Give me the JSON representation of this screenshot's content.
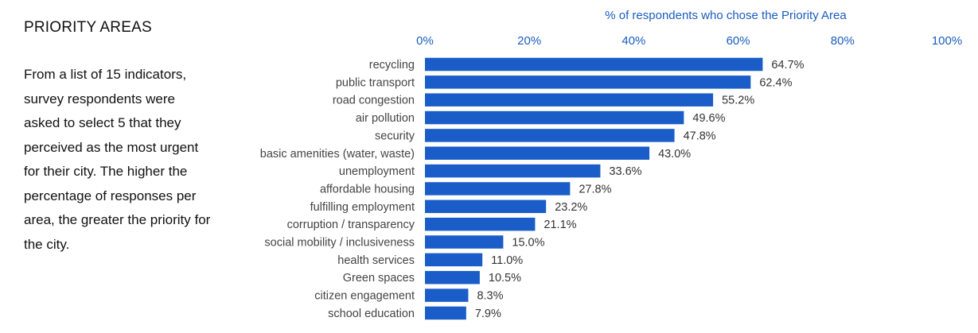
{
  "sidebar": {
    "title": "PRIORITY AREAS",
    "description": "From a list of 15 indicators, survey respondents were asked to select 5 that they perceived as the most urgent for their city. The higher the percentage of responses per area, the greater the priority for the city."
  },
  "chart_data": {
    "type": "bar",
    "orientation": "horizontal",
    "title": "% of respondents who chose the Priority Area",
    "xlim": [
      0,
      100
    ],
    "ticks": [
      0,
      20,
      40,
      60,
      80,
      100
    ],
    "tick_labels": [
      "0%",
      "20%",
      "40%",
      "60%",
      "80%",
      "100%"
    ],
    "axis_position": "top",
    "grid": false,
    "categories": [
      "recycling",
      "public transport",
      "road congestion",
      "air pollution",
      "security",
      "basic amenities (water, waste)",
      "unemployment",
      "affordable housing",
      "fulfilling employment",
      "corruption / transparency",
      "social mobility / inclusiveness",
      "health services",
      "Green spaces",
      "citizen engagement",
      "school education"
    ],
    "values": [
      64.7,
      62.4,
      55.2,
      49.6,
      47.8,
      43.0,
      33.6,
      27.8,
      23.2,
      21.1,
      15.0,
      11.0,
      10.5,
      8.3,
      7.9
    ],
    "value_labels": [
      "64.7%",
      "62.4%",
      "55.2%",
      "49.6%",
      "47.8%",
      "43.0%",
      "33.6%",
      "27.8%",
      "23.2%",
      "21.1%",
      "15.0%",
      "11.0%",
      "10.5%",
      "8.3%",
      "7.9%"
    ],
    "bar_color": "#1a5dc8",
    "accent_color": "#1a5dbd"
  }
}
